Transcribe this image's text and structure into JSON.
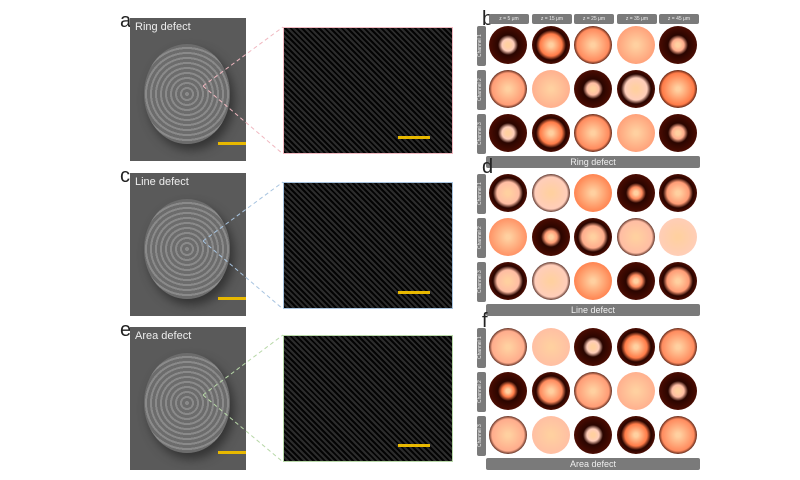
{
  "panels": [
    {
      "sem_letter": "a",
      "sem_title": "Ring defect",
      "grid_letter": "b",
      "footer": "Ring defect",
      "frame_color": "#f0b8c0"
    },
    {
      "sem_letter": "c",
      "sem_title": "Line defect",
      "grid_letter": "d",
      "footer": "Line defect",
      "frame_color": "#a8c4e0"
    },
    {
      "sem_letter": "e",
      "sem_title": "Area defect",
      "grid_letter": "f",
      "footer": "Area defect",
      "frame_color": "#b8d8a8"
    }
  ],
  "columns": [
    "z = 5 μm",
    "z = 15 μm",
    "z = 25 μm",
    "z = 35 μm",
    "z = 45 μm"
  ],
  "channels": [
    "Channel 1",
    "Channel 2",
    "Channel 3"
  ],
  "colors": {
    "scale_bar": "#e8b800",
    "label_bg": "#7a7a7a",
    "intensity": "#ff5a1a"
  }
}
